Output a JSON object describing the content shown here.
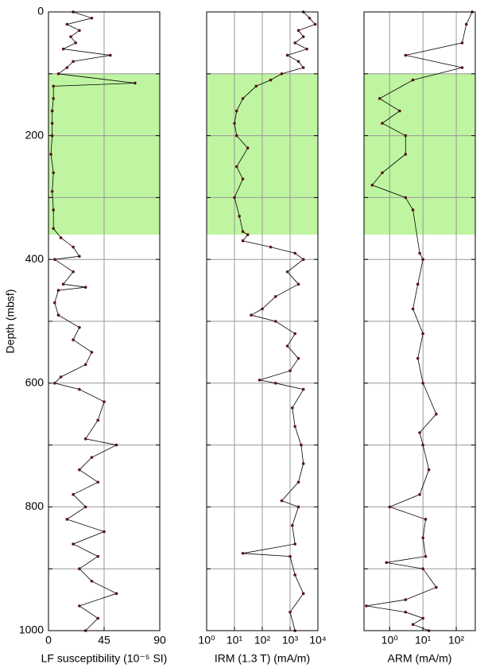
{
  "chart_data": [
    {
      "type": "line",
      "ylabel": "Depth (mbsf)",
      "xlabel": "LF susceptibility (10⁻⁵ SI)",
      "xscale": "linear",
      "xlim": [
        0,
        90
      ],
      "xticks": [
        0,
        45,
        90
      ],
      "ylim": [
        0,
        1000
      ],
      "yinvert": true,
      "yticks": [
        0,
        200,
        400,
        600,
        800,
        1000
      ],
      "yminor": [
        100,
        300,
        500,
        700,
        900
      ],
      "grid": true,
      "highlight": [
        100,
        360
      ],
      "highlight_color": "#bff5a0",
      "color": "#000000",
      "marker_color": "#5a1414",
      "y": [
        0,
        10,
        20,
        30,
        40,
        50,
        60,
        70,
        80,
        90,
        100,
        115,
        120,
        140,
        160,
        180,
        200,
        230,
        260,
        290,
        320,
        350,
        365,
        380,
        395,
        400,
        420,
        440,
        445,
        450,
        470,
        490,
        510,
        530,
        550,
        570,
        590,
        600,
        610,
        630,
        660,
        690,
        700,
        720,
        740,
        760,
        780,
        800,
        820,
        840,
        860,
        880,
        900,
        920,
        940,
        960,
        980,
        1000
      ],
      "x": [
        20,
        35,
        15,
        25,
        18,
        22,
        12,
        50,
        20,
        15,
        8,
        70,
        4,
        4,
        3,
        3,
        3,
        2,
        4,
        3,
        4,
        4,
        10,
        20,
        25,
        5,
        20,
        12,
        30,
        8,
        5,
        8,
        25,
        20,
        35,
        30,
        10,
        5,
        25,
        45,
        40,
        30,
        55,
        35,
        25,
        40,
        20,
        30,
        15,
        45,
        20,
        40,
        25,
        35,
        55,
        25,
        40,
        30
      ]
    },
    {
      "type": "line",
      "xlabel": "IRM (1.3 T) (mA/m)",
      "xscale": "log",
      "xlim": [
        1,
        10000
      ],
      "xticks": [
        {
          "value": 1,
          "label": "10⁰"
        },
        {
          "value": 10,
          "label": "10¹"
        },
        {
          "value": 100,
          "label": "10²"
        },
        {
          "value": 1000,
          "label": "10³"
        },
        {
          "value": 10000,
          "label": "10⁴"
        }
      ],
      "ylim": [
        0,
        1000
      ],
      "yinvert": true,
      "grid": true,
      "highlight": [
        100,
        360
      ],
      "highlight_color": "#bff5a0",
      "color": "#000000",
      "marker_color": "#5a1414",
      "y": [
        0,
        10,
        20,
        30,
        40,
        50,
        60,
        70,
        80,
        90,
        100,
        110,
        120,
        140,
        160,
        180,
        200,
        220,
        250,
        270,
        300,
        330,
        355,
        360,
        370,
        380,
        390,
        400,
        420,
        440,
        460,
        480,
        490,
        500,
        520,
        540,
        560,
        580,
        595,
        600,
        610,
        640,
        670,
        700,
        730,
        760,
        790,
        800,
        830,
        860,
        875,
        880,
        910,
        940,
        970,
        1000
      ],
      "x": [
        3000,
        5000,
        8000,
        2000,
        3000,
        1500,
        4000,
        800,
        2000,
        3000,
        500,
        200,
        60,
        20,
        12,
        10,
        12,
        30,
        12,
        20,
        10,
        15,
        20,
        30,
        20,
        200,
        1500,
        3000,
        800,
        2000,
        300,
        100,
        40,
        300,
        1500,
        800,
        2000,
        1000,
        80,
        300,
        3000,
        1200,
        1500,
        2500,
        3000,
        2000,
        500,
        2000,
        1200,
        1500,
        20,
        1000,
        1500,
        3000,
        1000,
        1500
      ]
    },
    {
      "type": "line",
      "xlabel": "ARM (mA/m)",
      "xscale": "log",
      "xlim": [
        0.17,
        372
      ],
      "xticks": [
        {
          "value": 1,
          "label": "10⁰"
        },
        {
          "value": 10,
          "label": "10¹"
        },
        {
          "value": 100,
          "label": "10²"
        }
      ],
      "ylim": [
        0,
        1000
      ],
      "yinvert": true,
      "grid": true,
      "highlight": [
        100,
        360
      ],
      "highlight_color": "#bff5a0",
      "color": "#000000",
      "marker_color": "#5a1414",
      "y": [
        0,
        20,
        50,
        70,
        90,
        110,
        140,
        160,
        180,
        200,
        230,
        260,
        280,
        300,
        320,
        390,
        400,
        440,
        480,
        520,
        560,
        600,
        650,
        680,
        700,
        740,
        780,
        800,
        820,
        850,
        880,
        890,
        900,
        930,
        950,
        960,
        970,
        980,
        990,
        1000
      ],
      "x": [
        300,
        200,
        150,
        3,
        150,
        5,
        0.5,
        2,
        0.6,
        3,
        3,
        0.6,
        0.3,
        3,
        5,
        8,
        10,
        7,
        5,
        10,
        7,
        10,
        25,
        8,
        10,
        15,
        8,
        1,
        12,
        10,
        12,
        0.8,
        10,
        25,
        3,
        0.2,
        3,
        10,
        5,
        15
      ]
    }
  ]
}
